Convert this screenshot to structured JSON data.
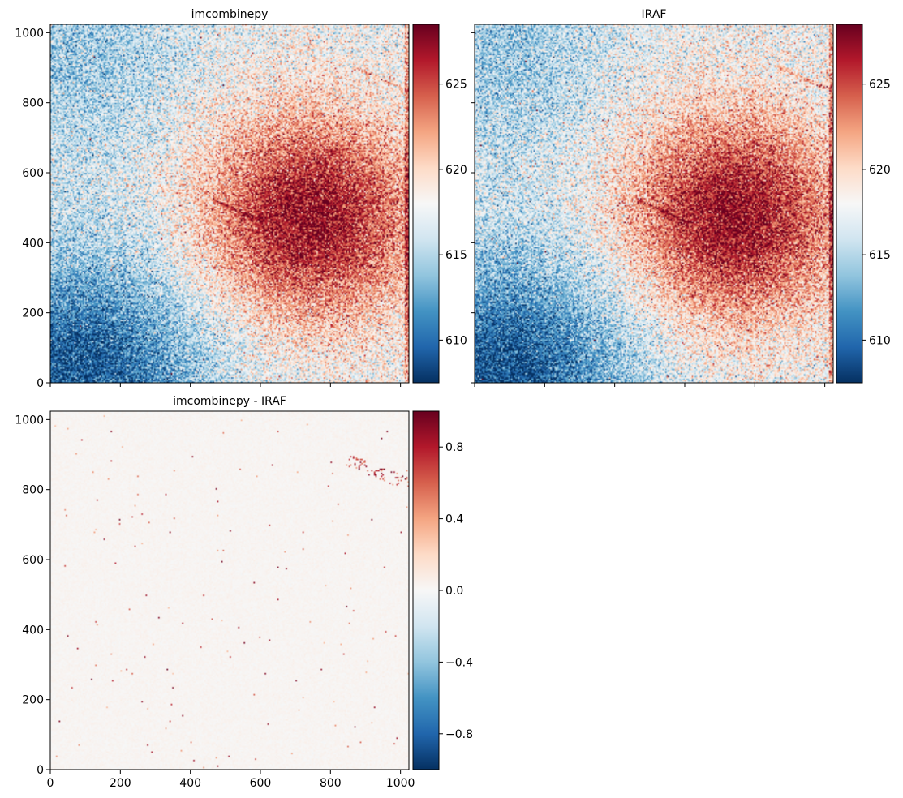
{
  "chart_data": [
    {
      "type": "heatmap",
      "title": "imcombinepy",
      "xlim": [
        0,
        1024
      ],
      "ylim": [
        0,
        1024
      ],
      "xticks": [
        0,
        200,
        400,
        600,
        800,
        1000
      ],
      "yticks": [
        0,
        200,
        400,
        600,
        800,
        1000
      ],
      "xtick_labels_shown": false,
      "ytick_labels_shown": true,
      "colormap": "RdBu_r",
      "colorbar": {
        "range": [
          607.5,
          628.5
        ],
        "ticks": [
          610,
          615,
          620,
          625
        ]
      },
      "features": {
        "background_level": 617.5,
        "hot_region": {
          "center": [
            740,
            470
          ],
          "peak": 627.5,
          "width": 220
        },
        "cold_corner": {
          "center": [
            80,
            0
          ],
          "level": 608.5,
          "width": 260
        },
        "cold_top_left": {
          "center": [
            80,
            940
          ],
          "level": 613.5,
          "width": 220
        },
        "bright_streaks": [
          {
            "from": [
              470,
              520
            ],
            "to": [
              610,
              460
            ]
          },
          {
            "from": [
              870,
              900
            ],
            "to": [
              1020,
              835
            ]
          }
        ]
      }
    },
    {
      "type": "heatmap",
      "title": "IRAF",
      "xlim": [
        0,
        1024
      ],
      "ylim": [
        0,
        1024
      ],
      "xticks": [
        0,
        200,
        400,
        600,
        800,
        1000
      ],
      "yticks": [
        0,
        200,
        400,
        600,
        800,
        1000
      ],
      "xtick_labels_shown": false,
      "ytick_labels_shown": false,
      "colormap": "RdBu_r",
      "colorbar": {
        "range": [
          607.5,
          628.5
        ],
        "ticks": [
          610,
          615,
          620,
          625
        ]
      },
      "features": {
        "background_level": 617.5,
        "hot_region": {
          "center": [
            740,
            470
          ],
          "peak": 627.5,
          "width": 220
        },
        "cold_corner": {
          "center": [
            80,
            0
          ],
          "level": 608.5,
          "width": 260
        },
        "cold_top_left": {
          "center": [
            80,
            940
          ],
          "level": 613.5,
          "width": 220
        },
        "bright_streaks": [
          {
            "from": [
              470,
              520
            ],
            "to": [
              610,
              460
            ]
          },
          {
            "from": [
              870,
              900
            ],
            "to": [
              1020,
              835
            ]
          }
        ]
      }
    },
    {
      "type": "heatmap",
      "title": "imcombinepy - IRAF",
      "xlim": [
        0,
        1024
      ],
      "ylim": [
        0,
        1024
      ],
      "xticks": [
        0,
        200,
        400,
        600,
        800,
        1000
      ],
      "yticks": [
        0,
        200,
        400,
        600,
        800,
        1000
      ],
      "xtick_labels_shown": true,
      "ytick_labels_shown": true,
      "colormap": "RdBu_r",
      "colorbar": {
        "range": [
          -1,
          1
        ],
        "ticks": [
          -0.8,
          -0.4,
          0.0,
          0.4,
          0.8
        ]
      },
      "features": {
        "background_level": 0.02,
        "sparse_positive_pixels": true,
        "dense_cluster": {
          "from": [
            860,
            880
          ],
          "to": [
            1010,
            820
          ]
        }
      }
    }
  ]
}
